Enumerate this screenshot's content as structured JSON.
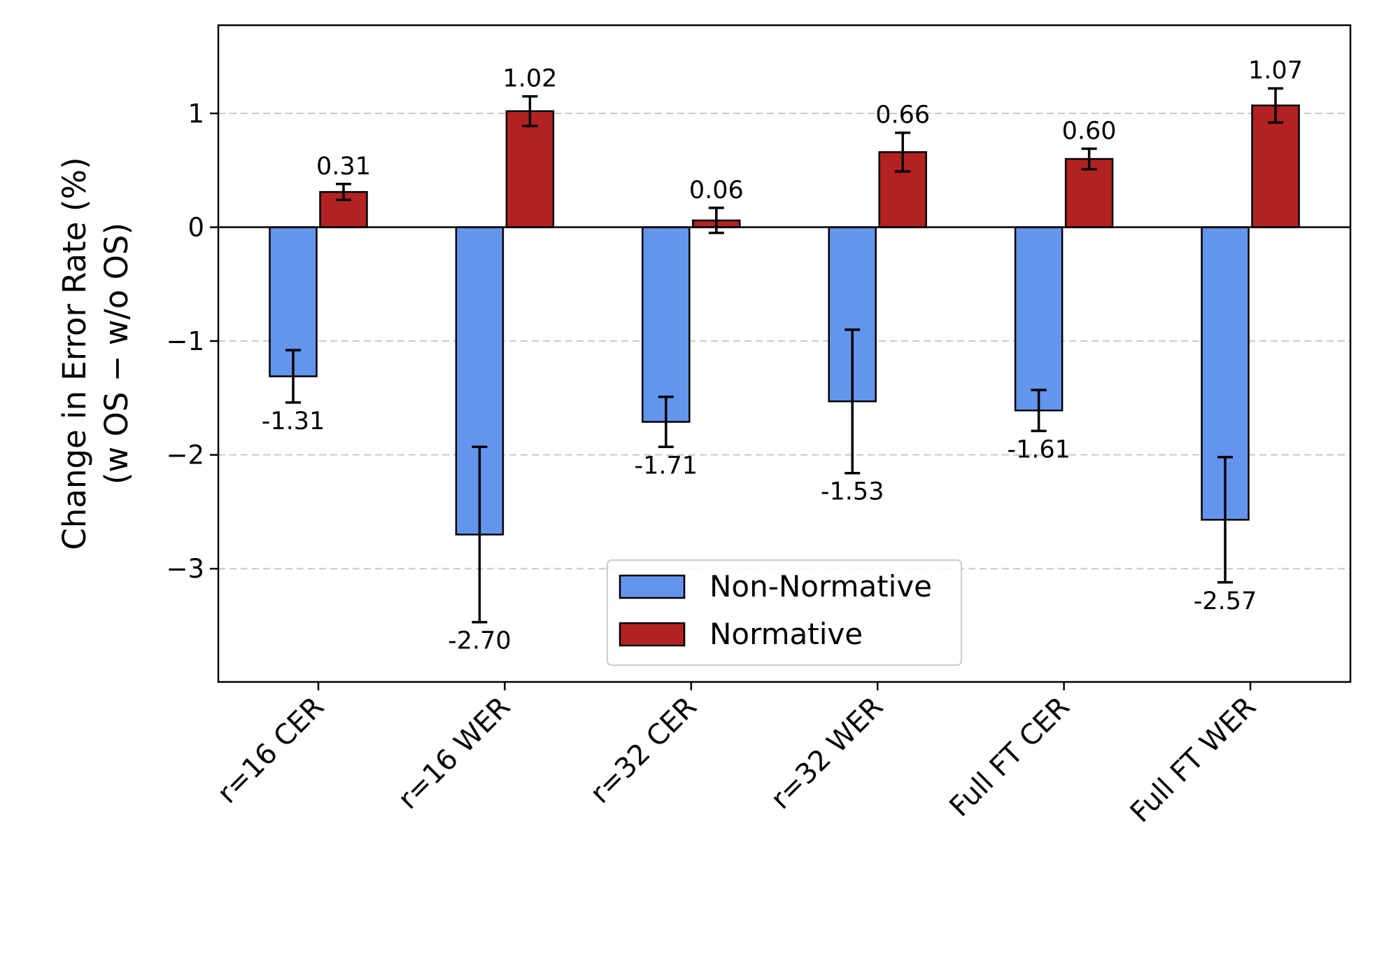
{
  "chart_data": {
    "type": "bar",
    "title": "",
    "xlabel": "",
    "ylabel": "Change in Error Rate (%)",
    "ylabel_line2": "(w OS − w/o OS)",
    "ylim": [
      -3.995,
      1.775
    ],
    "yticks": [
      -3,
      -2,
      -1,
      0,
      1
    ],
    "ytick_labels": [
      "−3",
      "−2",
      "−1",
      "0",
      "1"
    ],
    "grid": "y-dashed",
    "legend_position": "lower-center",
    "categories": [
      "r=16 CER",
      "r=16 WER",
      "r=32 CER",
      "r=32 WER",
      "Full FT CER",
      "Full FT WER"
    ],
    "series": [
      {
        "name": "Non-Normative",
        "color": "#6495ED",
        "values": [
          -1.31,
          -2.7,
          -1.71,
          -1.53,
          -1.61,
          -2.57
        ],
        "errors": [
          0.23,
          0.77,
          0.22,
          0.63,
          0.18,
          0.55
        ],
        "labels": [
          "-1.31",
          "-2.70",
          "-1.71",
          "-1.53",
          "-1.61",
          "-2.57"
        ]
      },
      {
        "name": "Normative",
        "color": "#B22222",
        "values": [
          0.31,
          1.02,
          0.06,
          0.66,
          0.6,
          1.07
        ],
        "errors": [
          0.07,
          0.13,
          0.11,
          0.17,
          0.09,
          0.15
        ],
        "labels": [
          "0.31",
          "1.02",
          "0.06",
          "0.66",
          "0.60",
          "1.07"
        ]
      }
    ]
  }
}
